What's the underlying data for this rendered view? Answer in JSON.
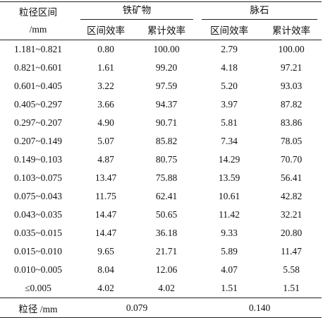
{
  "table": {
    "header": {
      "first_column": [
        "粒径区间",
        "/mm"
      ],
      "groups": [
        "铁矿物",
        "脉石"
      ],
      "subcolumns": [
        "区间效率",
        "累计效率",
        "区间效率",
        "累计效率"
      ]
    },
    "rows": [
      [
        "1.181~0.821",
        "0.80",
        "100.00",
        "2.79",
        "100.00"
      ],
      [
        "0.821~0.601",
        "1.61",
        "99.20",
        "4.18",
        "97.21"
      ],
      [
        "0.601~0.405",
        "3.22",
        "97.59",
        "5.20",
        "93.03"
      ],
      [
        "0.405~0.297",
        "3.66",
        "94.37",
        "3.97",
        "87.82"
      ],
      [
        "0.297~0.207",
        "4.90",
        "90.71",
        "5.81",
        "83.86"
      ],
      [
        "0.207~0.149",
        "5.07",
        "85.82",
        "7.34",
        "78.05"
      ],
      [
        "0.149~0.103",
        "4.87",
        "80.75",
        "14.29",
        "70.70"
      ],
      [
        "0.103~0.075",
        "13.47",
        "75.88",
        "13.59",
        "56.41"
      ],
      [
        "0.075~0.043",
        "11.75",
        "62.41",
        "10.61",
        "42.82"
      ],
      [
        "0.043~0.035",
        "14.47",
        "50.65",
        "11.42",
        "32.21"
      ],
      [
        "0.035~0.015",
        "14.47",
        "36.18",
        "9.33",
        "20.80"
      ],
      [
        "0.015~0.010",
        "9.65",
        "21.71",
        "5.89",
        "11.47"
      ],
      [
        "0.010~0.005",
        "8.04",
        "12.06",
        "4.07",
        "5.58"
      ],
      [
        "≤0.005",
        "4.02",
        "4.02",
        "1.51",
        "1.51"
      ]
    ],
    "footer": [
      "粒径 /mm",
      "0.079",
      "0.140"
    ]
  }
}
